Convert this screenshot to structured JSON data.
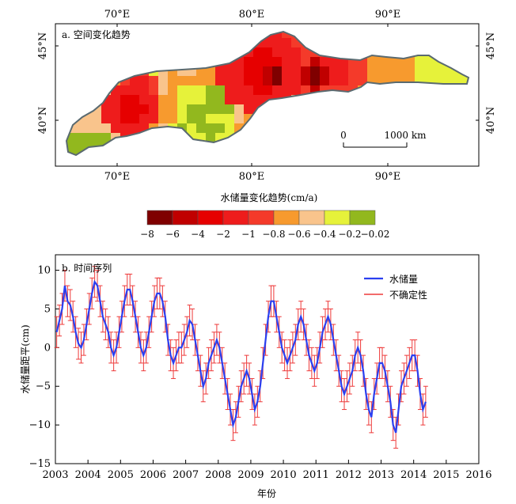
{
  "chart_data": [
    {
      "type": "heatmap",
      "title": "a. 空间变化趋势",
      "x_ticks": [
        "70°E",
        "80°E",
        "90°E"
      ],
      "y_ticks": [
        "40°N",
        "45°N"
      ],
      "scale_bar": {
        "start": "0",
        "end": "1000 km"
      },
      "legend": {
        "title": "水储量变化趋势(cm/a)",
        "placement": "bottom",
        "boundaries": [
          "−8",
          "−6",
          "−4",
          "−2",
          "−1",
          "−0.8",
          "−0.6",
          "−0.4",
          "−0.2",
          "−0.02"
        ],
        "colors": [
          "#7f0000",
          "#c00000",
          "#e60000",
          "#ee1c1c",
          "#f43a2a",
          "#f79a2e",
          "#f9c48c",
          "#e6f23a",
          "#92b81e"
        ]
      }
    },
    {
      "type": "line",
      "title": "b. 时间序列",
      "xlabel": "年份",
      "ylabel": "水储量距平(cm)",
      "x_ticks": [
        "2003",
        "2004",
        "2005",
        "2006",
        "2007",
        "2008",
        "2009",
        "2010",
        "2011",
        "2012",
        "2013",
        "2014",
        "2015",
        "2016"
      ],
      "y_ticks": [
        "10",
        "5",
        "0",
        "−5",
        "−10",
        "−15"
      ],
      "xlim": [
        2003,
        2016
      ],
      "ylim": [
        -15,
        12
      ],
      "legend": {
        "placement": "top-right"
      },
      "series": [
        {
          "name": "水储量",
          "color": "#2a3ff0",
          "x_start": 2003.04,
          "x_step": 0.0833,
          "values": [
            2,
            3.5,
            5,
            8,
            6,
            5.5,
            4,
            2,
            0.5,
            0,
            1,
            3,
            5,
            7,
            8.5,
            8,
            6,
            4,
            3,
            2,
            0,
            -1,
            0,
            2,
            4,
            6,
            7.5,
            7.5,
            6,
            4,
            2,
            0,
            -1,
            0,
            2,
            4,
            6,
            7,
            7,
            6,
            4,
            1,
            -1,
            -2,
            -1,
            0,
            0,
            1,
            2,
            3.5,
            3,
            1,
            -1,
            -3,
            -5,
            -4,
            -2,
            -1,
            0,
            1,
            0,
            -2,
            -4,
            -6,
            -8,
            -10,
            -9,
            -7,
            -5,
            -4,
            -3,
            -4,
            -6,
            -8,
            -7,
            -5,
            -2,
            1,
            4,
            6,
            6,
            4,
            2,
            0,
            -1,
            -2,
            -1,
            0,
            1,
            3,
            4,
            3,
            1,
            -1,
            -2,
            -3,
            -2,
            0,
            2,
            3,
            4,
            3,
            1,
            -1,
            -3,
            -5,
            -6,
            -5,
            -4,
            -3,
            -1,
            0,
            -1,
            -3,
            -6,
            -8,
            -9,
            -6,
            -4,
            -2,
            -2,
            -3,
            -5,
            -7,
            -10,
            -11,
            -8,
            -5,
            -4,
            -3,
            -2,
            -1,
            -1,
            -3,
            -6,
            -8,
            -7
          ]
        },
        {
          "name": "不确定性",
          "color": "#ee3a3a",
          "error": 2
        }
      ]
    }
  ]
}
